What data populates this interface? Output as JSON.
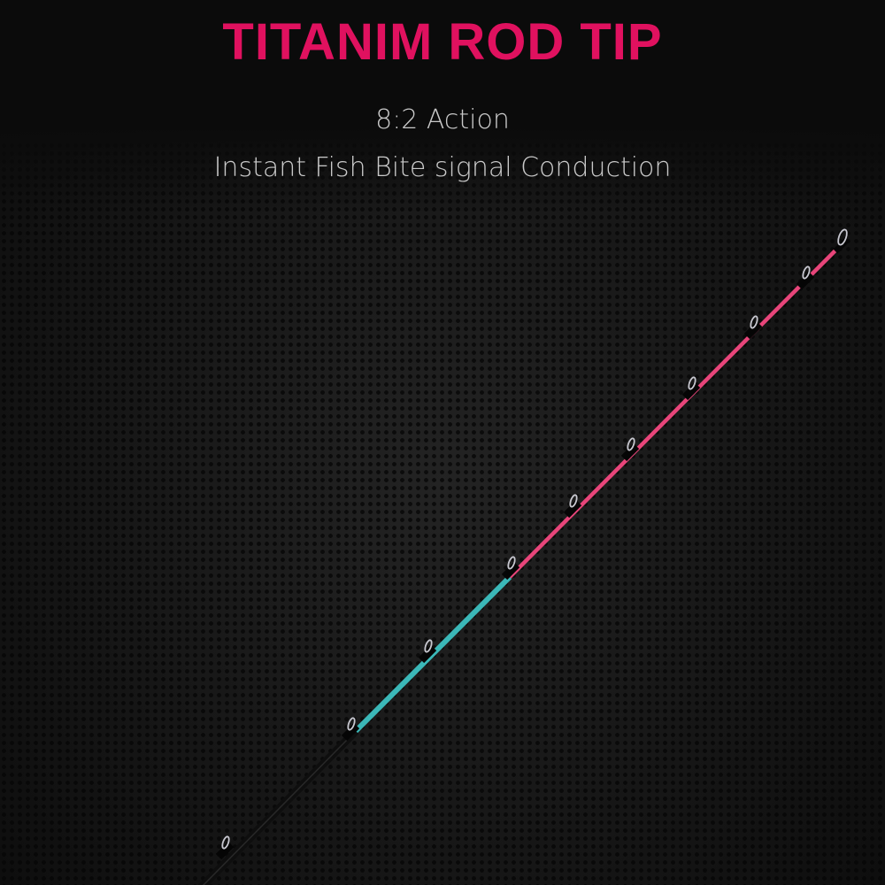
{
  "title": "TITANIM ROD TIP",
  "subtitle_1": "8:2 Action",
  "subtitle_2": "Instant Fish Bite signal Conduction",
  "colors": {
    "title": "#e0115f",
    "rod_tip_pink": "#e8457a",
    "rod_mid_teal": "#3bb8b8",
    "rod_butt": "#111111"
  },
  "image": {
    "subject": "fishing rod tip with guides",
    "icon": "fishing-rod-illustration"
  }
}
